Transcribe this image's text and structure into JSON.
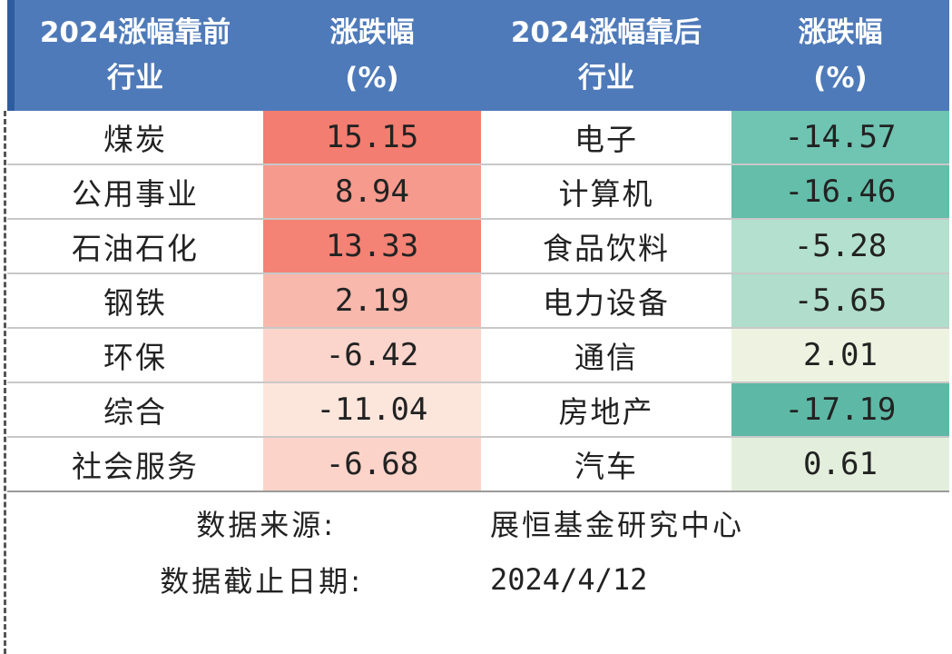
{
  "header": {
    "col1_line1": "2024涨幅靠前",
    "col1_line2": "行业",
    "col2_line1": "涨跌幅",
    "col2_line2": "(%)",
    "col3_line1": "2024涨幅靠后",
    "col3_line2": "行业",
    "col4_line1": "涨跌幅",
    "col4_line2": "(%)"
  },
  "rows": [
    {
      "top_industry": "煤炭",
      "top_change": "15.15",
      "top_color": "#f37d70",
      "bottom_industry": "电子",
      "bottom_change": "-14.57",
      "bottom_color": "#6fc4b2"
    },
    {
      "top_industry": "公用事业",
      "top_change": "8.94",
      "top_color": "#f69a8d",
      "bottom_industry": "计算机",
      "bottom_change": "-16.46",
      "bottom_color": "#64bea9"
    },
    {
      "top_industry": "石油石化",
      "top_change": "13.33",
      "top_color": "#f48275",
      "bottom_industry": "食品饮料",
      "bottom_change": "-5.28",
      "bottom_color": "#b4e0cf"
    },
    {
      "top_industry": "钢铁",
      "top_change": "2.19",
      "top_color": "#f8b8ac",
      "bottom_industry": "电力设备",
      "bottom_change": "-5.65",
      "bottom_color": "#b0ddcc"
    },
    {
      "top_industry": "环保",
      "top_change": "-6.42",
      "top_color": "#fbd5cb",
      "bottom_industry": "通信",
      "bottom_change": "2.01",
      "bottom_color": "#eef3e1"
    },
    {
      "top_industry": "综合",
      "top_change": "-11.04",
      "top_color": "#fce6dc",
      "bottom_industry": "房地产",
      "bottom_change": "-17.19",
      "bottom_color": "#5db9a5"
    },
    {
      "top_industry": "社会服务",
      "top_change": "-6.68",
      "top_color": "#fbd3c9",
      "bottom_industry": "汽车",
      "bottom_change": "0.61",
      "bottom_color": "#e3efdc"
    }
  ],
  "footer": {
    "source_label": "数据来源:",
    "source_value": "展恒基金研究中心",
    "date_label": "数据截止日期:",
    "date_value": "2024/4/12"
  },
  "colors": {
    "header_bg": "#4f7ab9",
    "header_text": "#ffffff"
  }
}
